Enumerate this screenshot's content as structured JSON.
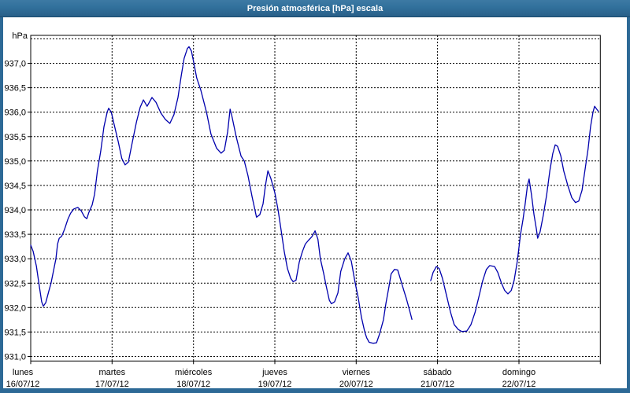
{
  "window": {
    "title": "Presión atmosférica [hPa] escala"
  },
  "chart_data": {
    "type": "line",
    "title": "Presión atmosférica [hPa] escala",
    "unit_label": "hPa",
    "ylim": [
      930.9,
      937.6
    ],
    "ytick_step": 0.5,
    "grid": "black dashed gridlines, horizontal every 0.5 hPa and vertical at each day, on white background",
    "legend": "none",
    "line_color": "#0000ad",
    "yticks": [
      {
        "v": 937.0,
        "label": "937,0"
      },
      {
        "v": 936.5,
        "label": "936,5"
      },
      {
        "v": 936.0,
        "label": "936,0"
      },
      {
        "v": 935.5,
        "label": "935,5"
      },
      {
        "v": 935.0,
        "label": "935,0"
      },
      {
        "v": 934.5,
        "label": "934,5"
      },
      {
        "v": 934.0,
        "label": "934,0"
      },
      {
        "v": 933.5,
        "label": "933,5"
      },
      {
        "v": 933.0,
        "label": "933,0"
      },
      {
        "v": 932.5,
        "label": "932,5"
      },
      {
        "v": 932.0,
        "label": "932,0"
      },
      {
        "v": 931.5,
        "label": "931,5"
      },
      {
        "v": 931.0,
        "label": "931,0"
      }
    ],
    "gridline_values": [
      931.0,
      931.5,
      932.0,
      932.5,
      933.0,
      933.5,
      934.0,
      934.5,
      935.0,
      935.5,
      936.0,
      936.5,
      937.0,
      937.5
    ],
    "xdays": [
      {
        "name": "lunes",
        "date": "16/07/12"
      },
      {
        "name": "martes",
        "date": "17/07/12"
      },
      {
        "name": "miércoles",
        "date": "18/07/12"
      },
      {
        "name": "jueves",
        "date": "19/07/12"
      },
      {
        "name": "viernes",
        "date": "20/07/12"
      },
      {
        "name": "sábado",
        "date": "21/07/12"
      },
      {
        "name": "domingo",
        "date": "22/07/12"
      }
    ],
    "x_unit": "days since lunes 16/07/12 00:00",
    "series": [
      {
        "name": "Presión atmosférica",
        "unit": "hPa",
        "segments": [
          [
            [
              0,
              933.28
            ],
            [
              0.03,
              933.15
            ],
            [
              0.07,
              932.85
            ],
            [
              0.105,
              932.45
            ],
            [
              0.135,
              932.12
            ],
            [
              0.155,
              932.03
            ],
            [
              0.185,
              932.1
            ],
            [
              0.22,
              932.32
            ],
            [
              0.25,
              932.5
            ],
            [
              0.28,
              932.75
            ],
            [
              0.31,
              933.0
            ],
            [
              0.33,
              933.3
            ],
            [
              0.35,
              933.42
            ],
            [
              0.38,
              933.46
            ],
            [
              0.415,
              933.6
            ],
            [
              0.455,
              933.8
            ],
            [
              0.49,
              933.93
            ],
            [
              0.53,
              934.02
            ],
            [
              0.58,
              934.05
            ],
            [
              0.62,
              933.98
            ],
            [
              0.66,
              933.86
            ],
            [
              0.69,
              933.82
            ],
            [
              0.715,
              933.95
            ],
            [
              0.755,
              934.1
            ],
            [
              0.785,
              934.32
            ],
            [
              0.82,
              934.8
            ],
            [
              0.86,
              935.2
            ],
            [
              0.9,
              935.7
            ],
            [
              0.94,
              936.0
            ],
            [
              0.958,
              936.08
            ],
            [
              0.99,
              936.0
            ],
            [
              1.025,
              935.75
            ],
            [
              1.075,
              935.4
            ],
            [
              1.12,
              935.05
            ],
            [
              1.16,
              934.92
            ],
            [
              1.2,
              934.98
            ],
            [
              1.25,
              935.4
            ],
            [
              1.3,
              935.8
            ],
            [
              1.345,
              936.1
            ],
            [
              1.385,
              936.25
            ],
            [
              1.43,
              936.12
            ],
            [
              1.49,
              936.3
            ],
            [
              1.54,
              936.2
            ],
            [
              1.6,
              935.98
            ],
            [
              1.655,
              935.85
            ],
            [
              1.71,
              935.77
            ],
            [
              1.76,
              935.95
            ],
            [
              1.81,
              936.3
            ],
            [
              1.85,
              936.75
            ],
            [
              1.885,
              937.1
            ],
            [
              1.925,
              937.3
            ],
            [
              1.945,
              937.34
            ],
            [
              1.975,
              937.25
            ],
            [
              2.005,
              937.0
            ],
            [
              2.04,
              936.7
            ],
            [
              2.09,
              936.45
            ],
            [
              2.16,
              936.0
            ],
            [
              2.215,
              935.55
            ],
            [
              2.285,
              935.26
            ],
            [
              2.34,
              935.16
            ],
            [
              2.38,
              935.22
            ],
            [
              2.42,
              935.6
            ],
            [
              2.45,
              936.06
            ],
            [
              2.475,
              935.9
            ],
            [
              2.525,
              935.5
            ],
            [
              2.585,
              935.1
            ],
            [
              2.625,
              935.0
            ],
            [
              2.67,
              934.7
            ],
            [
              2.72,
              934.27
            ],
            [
              2.775,
              933.85
            ],
            [
              2.815,
              933.9
            ],
            [
              2.855,
              934.12
            ],
            [
              2.885,
              934.5
            ],
            [
              2.915,
              934.8
            ],
            [
              2.95,
              934.65
            ],
            [
              3.0,
              934.35
            ],
            [
              3.04,
              934.0
            ],
            [
              3.08,
              933.55
            ],
            [
              3.115,
              933.15
            ],
            [
              3.155,
              932.8
            ],
            [
              3.195,
              932.6
            ],
            [
              3.225,
              932.53
            ],
            [
              3.26,
              932.56
            ],
            [
              3.3,
              932.93
            ],
            [
              3.34,
              933.15
            ],
            [
              3.375,
              933.3
            ],
            [
              3.415,
              933.38
            ],
            [
              3.455,
              933.45
            ],
            [
              3.495,
              933.57
            ],
            [
              3.53,
              933.4
            ],
            [
              3.56,
              933.0
            ],
            [
              3.6,
              932.7
            ],
            [
              3.63,
              932.45
            ],
            [
              3.67,
              932.15
            ],
            [
              3.695,
              932.08
            ],
            [
              3.735,
              932.12
            ],
            [
              3.775,
              932.3
            ],
            [
              3.81,
              932.74
            ],
            [
              3.86,
              933.0
            ],
            [
              3.9,
              933.12
            ],
            [
              3.94,
              932.95
            ],
            [
              3.985,
              932.52
            ],
            [
              4.025,
              932.2
            ],
            [
              4.065,
              931.8
            ],
            [
              4.105,
              931.5
            ],
            [
              4.13,
              931.38
            ],
            [
              4.16,
              931.29
            ],
            [
              4.21,
              931.27
            ],
            [
              4.25,
              931.28
            ],
            [
              4.285,
              931.45
            ],
            [
              4.335,
              931.75
            ],
            [
              4.365,
              932.08
            ],
            [
              4.4,
              932.4
            ],
            [
              4.43,
              932.69
            ],
            [
              4.47,
              932.78
            ],
            [
              4.51,
              932.77
            ],
            [
              4.55,
              932.55
            ],
            [
              4.585,
              932.35
            ],
            [
              4.615,
              932.19
            ],
            [
              4.655,
              931.95
            ],
            [
              4.685,
              931.76
            ]
          ],
          [
            [
              4.915,
              932.55
            ],
            [
              4.945,
              932.72
            ],
            [
              4.985,
              932.84
            ],
            [
              5.02,
              932.8
            ],
            [
              5.06,
              932.6
            ],
            [
              5.11,
              932.25
            ],
            [
              5.16,
              931.9
            ],
            [
              5.205,
              931.65
            ],
            [
              5.255,
              931.55
            ],
            [
              5.3,
              931.51
            ],
            [
              5.36,
              931.52
            ],
            [
              5.41,
              931.65
            ],
            [
              5.46,
              931.9
            ],
            [
              5.505,
              932.2
            ],
            [
              5.555,
              932.55
            ],
            [
              5.6,
              932.78
            ],
            [
              5.64,
              932.86
            ],
            [
              5.7,
              932.84
            ],
            [
              5.74,
              932.72
            ],
            [
              5.785,
              932.5
            ],
            [
              5.825,
              932.35
            ],
            [
              5.865,
              932.28
            ],
            [
              5.905,
              932.35
            ],
            [
              5.94,
              932.55
            ],
            [
              5.98,
              932.95
            ],
            [
              6.02,
              933.5
            ],
            [
              6.05,
              933.8
            ],
            [
              6.075,
              934.1
            ],
            [
              6.105,
              934.5
            ],
            [
              6.125,
              934.63
            ],
            [
              6.155,
              934.3
            ],
            [
              6.185,
              933.9
            ],
            [
              6.215,
              933.6
            ],
            [
              6.23,
              933.42
            ],
            [
              6.26,
              933.55
            ],
            [
              6.3,
              933.9
            ],
            [
              6.34,
              934.3
            ],
            [
              6.38,
              934.8
            ],
            [
              6.415,
              935.15
            ],
            [
              6.445,
              935.33
            ],
            [
              6.475,
              935.3
            ],
            [
              6.515,
              935.1
            ],
            [
              6.55,
              934.8
            ],
            [
              6.6,
              934.5
            ],
            [
              6.65,
              934.25
            ],
            [
              6.695,
              934.15
            ],
            [
              6.735,
              934.18
            ],
            [
              6.775,
              934.4
            ],
            [
              6.81,
              934.8
            ],
            [
              6.85,
              935.25
            ],
            [
              6.88,
              935.7
            ],
            [
              6.91,
              936.0
            ],
            [
              6.93,
              936.12
            ],
            [
              6.955,
              936.06
            ],
            [
              6.975,
              936.02
            ]
          ]
        ]
      }
    ]
  }
}
